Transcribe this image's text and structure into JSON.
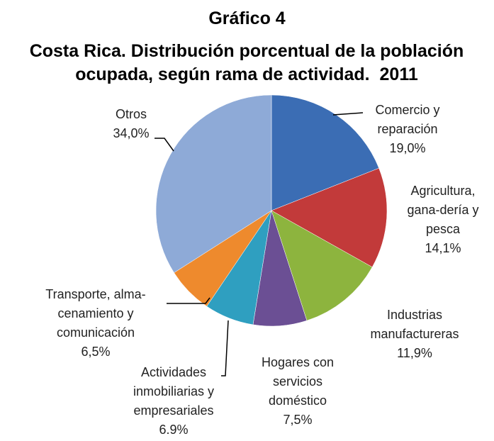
{
  "chart_data": {
    "type": "pie",
    "title": "Gráfico 4",
    "subtitle": "Costa Rica. Distribución porcentual de la población ocupada, según rama de actividad.  2011",
    "categories": [
      "Comercio y reparación",
      "Agricultura, gana-dería y pesca",
      "Industrias manufactureras",
      "Hogares con servicios doméstico",
      "Actividades inmobiliarias y empresariales",
      "Transporte, alma-cenamiento y comunicación",
      "Otros"
    ],
    "values": [
      19.0,
      14.1,
      11.9,
      7.5,
      6.9,
      6.5,
      34.0
    ],
    "value_labels": [
      "19,0%",
      "14,1%",
      "11,9%",
      "7,5%",
      "6.9%",
      "6,5%",
      "34,0%"
    ],
    "colors": [
      "#3b6db4",
      "#c23a3a",
      "#8db43e",
      "#6b4f94",
      "#2f9fc0",
      "#ee8a2d",
      "#8eaad7"
    ]
  }
}
